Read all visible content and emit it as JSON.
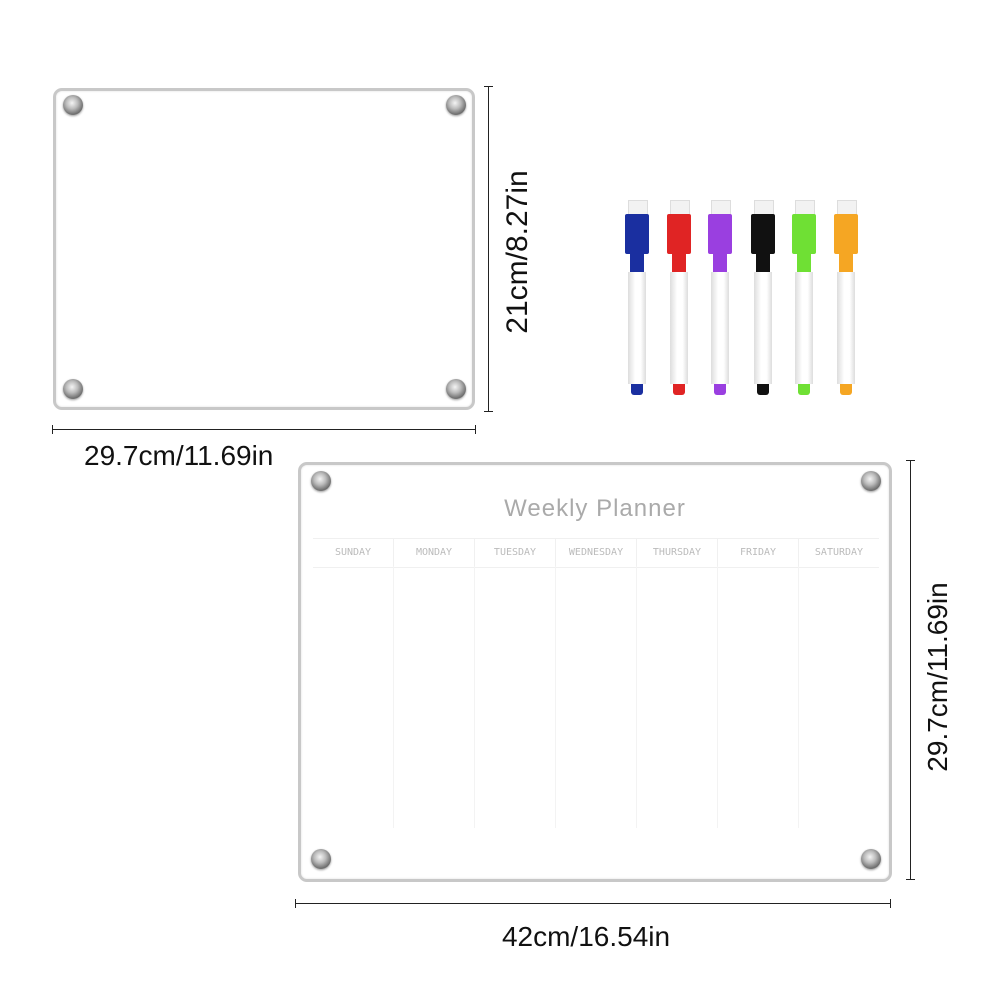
{
  "small_board": {
    "height_label": "21cm/8.27in",
    "width_label": "29.7cm/11.69in"
  },
  "markers": [
    {
      "color": "blue",
      "hex": "#1a2fa0"
    },
    {
      "color": "red",
      "hex": "#e02424"
    },
    {
      "color": "purple",
      "hex": "#9a3fe0"
    },
    {
      "color": "black",
      "hex": "#111111"
    },
    {
      "color": "green",
      "hex": "#6fe034"
    },
    {
      "color": "orange",
      "hex": "#f5a623"
    }
  ],
  "planner_board": {
    "title": "Weekly Planner",
    "days": [
      "SUNDAY",
      "MONDAY",
      "TUESDAY",
      "WEDNESDAY",
      "THURSDAY",
      "FRIDAY",
      "SATURDAY"
    ],
    "height_label": "29.7cm/11.69in",
    "width_label": "42cm/16.54in"
  }
}
